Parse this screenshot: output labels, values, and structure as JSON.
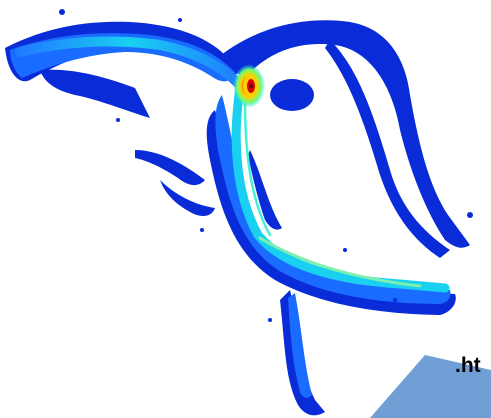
{
  "image": {
    "subject": "river-flow-velocity-map",
    "colormap": [
      "#00008f",
      "#0040ff",
      "#00c8ff",
      "#80ff80",
      "#ffff00",
      "#ff4000",
      "#a00000"
    ]
  },
  "caption_fragment": ".ht",
  "colors": {
    "background": "#ffffff",
    "channel_low": "#0a2bd8",
    "channel_mid": "#1a6bff",
    "channel_fast": "#19d0f0",
    "hotspot_yellow": "#fff000",
    "hotspot_red": "#d80000",
    "accent_shape": "#6f9fd4"
  }
}
